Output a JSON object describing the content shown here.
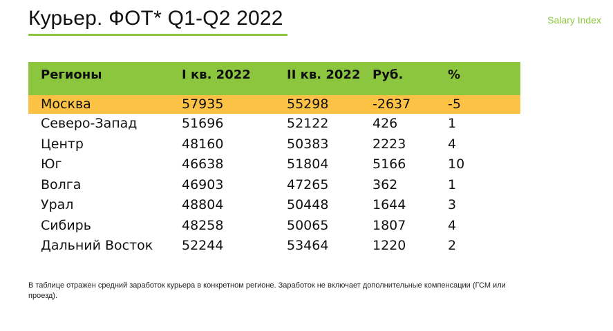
{
  "title": "Курьер. ФОТ* Q1-Q2 2022",
  "brand": "Salary Index",
  "colors": {
    "accent_green": "#8cc63f",
    "highlight_orange": "#fbc245"
  },
  "table": {
    "headers": [
      "Регионы",
      "I кв. 2022",
      "II кв. 2022",
      "Руб.",
      "%"
    ],
    "rows": [
      [
        "Москва",
        "57935",
        "55298",
        "-2637",
        "-5"
      ],
      [
        "Северо-Запад",
        "51696",
        "52122",
        "426",
        "1"
      ],
      [
        "Центр",
        "48160",
        "50383",
        "2223",
        "4"
      ],
      [
        "Юг",
        "46638",
        "51804",
        "5166",
        "10"
      ],
      [
        "Волга",
        "46903",
        "47265",
        "362",
        "1"
      ],
      [
        "Урал",
        "48804",
        "50448",
        "1644",
        "3"
      ],
      [
        "Сибирь",
        "48258",
        "50065",
        "1807",
        "4"
      ],
      [
        "Дальний Восток",
        "52244",
        "53464",
        "1220",
        "2"
      ]
    ]
  },
  "footnote": "В таблице отражен средний заработок курьера в конкретном регионе.  Заработок не включает дополнительные компенсации (ГСМ или проезд)."
}
